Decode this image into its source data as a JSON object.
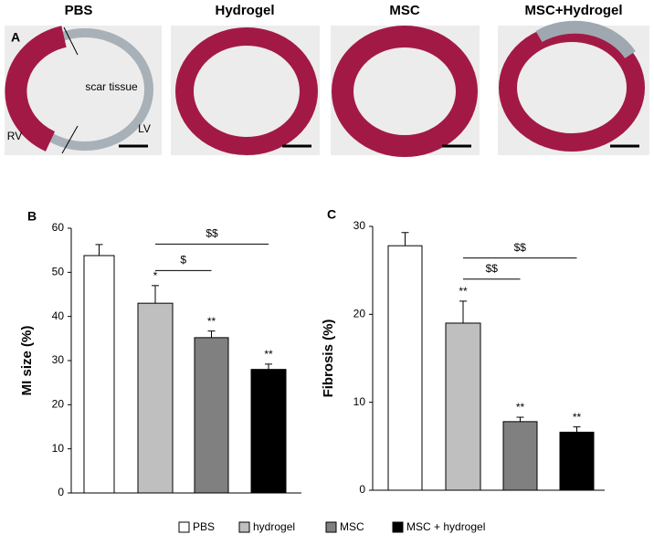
{
  "panel_a": {
    "label": "A",
    "titles": [
      "PBS",
      "Hydrogel",
      "MSC",
      "MSC+Hydrogel"
    ],
    "annotations": [
      "scar tissue",
      "RV",
      "LV"
    ]
  },
  "legend": [
    {
      "name": "PBS",
      "color": "#ffffff"
    },
    {
      "name": "hydrogel",
      "color": "#bfbfbf"
    },
    {
      "name": "MSC",
      "color": "#808080"
    },
    {
      "name": "MSC + hydrogel",
      "color": "#000000"
    }
  ],
  "chart_data": [
    {
      "type": "bar",
      "panel": "B",
      "ylabel": "MI size  (%)",
      "values": [
        53.8,
        43,
        35.2,
        28
      ],
      "errors": [
        2.5,
        4,
        1.5,
        1.2
      ],
      "stars": [
        null,
        "*",
        "**",
        "**"
      ],
      "brackets": [
        "$$",
        "$"
      ],
      "ylim": [
        0,
        60
      ],
      "yticks": [
        0,
        10,
        20,
        30,
        40,
        50,
        60
      ]
    },
    {
      "type": "bar",
      "panel": "C",
      "ylabel": "Fibrosis  (%)",
      "values": [
        27.8,
        19,
        7.8,
        6.6
      ],
      "errors": [
        1.5,
        2.5,
        0.5,
        0.6
      ],
      "stars": [
        null,
        "**",
        "**",
        "**"
      ],
      "brackets": [
        "$$",
        "$$"
      ],
      "ylim": [
        0,
        30
      ],
      "yticks": [
        0,
        10,
        20,
        30
      ]
    }
  ]
}
